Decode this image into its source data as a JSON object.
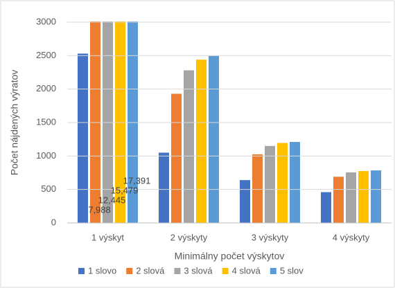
{
  "chart_data": {
    "type": "bar",
    "x_label": "Minimálny počet výskytov",
    "y_label": "Počet nájdených výratov",
    "categories": [
      "1 výskyt",
      "2 výskyty",
      "3 výskyty",
      "4 výskyty"
    ],
    "series": [
      {
        "name": "1 slovo",
        "color": "#4472c4",
        "values": [
          2530,
          1050,
          640,
          460
        ]
      },
      {
        "name": "2 slová",
        "color": "#ed7d31",
        "values": [
          7988,
          1930,
          1025,
          690
        ],
        "value_labels": [
          "7,988",
          null,
          null,
          null
        ]
      },
      {
        "name": "3 slová",
        "color": "#a5a5a5",
        "values": [
          12445,
          2280,
          1150,
          755
        ],
        "value_labels": [
          "12,445",
          null,
          null,
          null
        ]
      },
      {
        "name": "4 slová",
        "color": "#ffc000",
        "values": [
          15479,
          2440,
          1195,
          775
        ],
        "value_labels": [
          "15,479",
          null,
          null,
          null
        ]
      },
      {
        "name": "5 slov",
        "color": "#5b9bd5",
        "values": [
          17391,
          2500,
          1210,
          785
        ],
        "value_labels": [
          "17,391",
          null,
          null,
          null
        ]
      }
    ],
    "ylim": [
      0,
      3000
    ],
    "yticks": [
      0,
      500,
      1000,
      1500,
      2000,
      2500,
      3000
    ],
    "grid": true,
    "legend": "bottom"
  }
}
